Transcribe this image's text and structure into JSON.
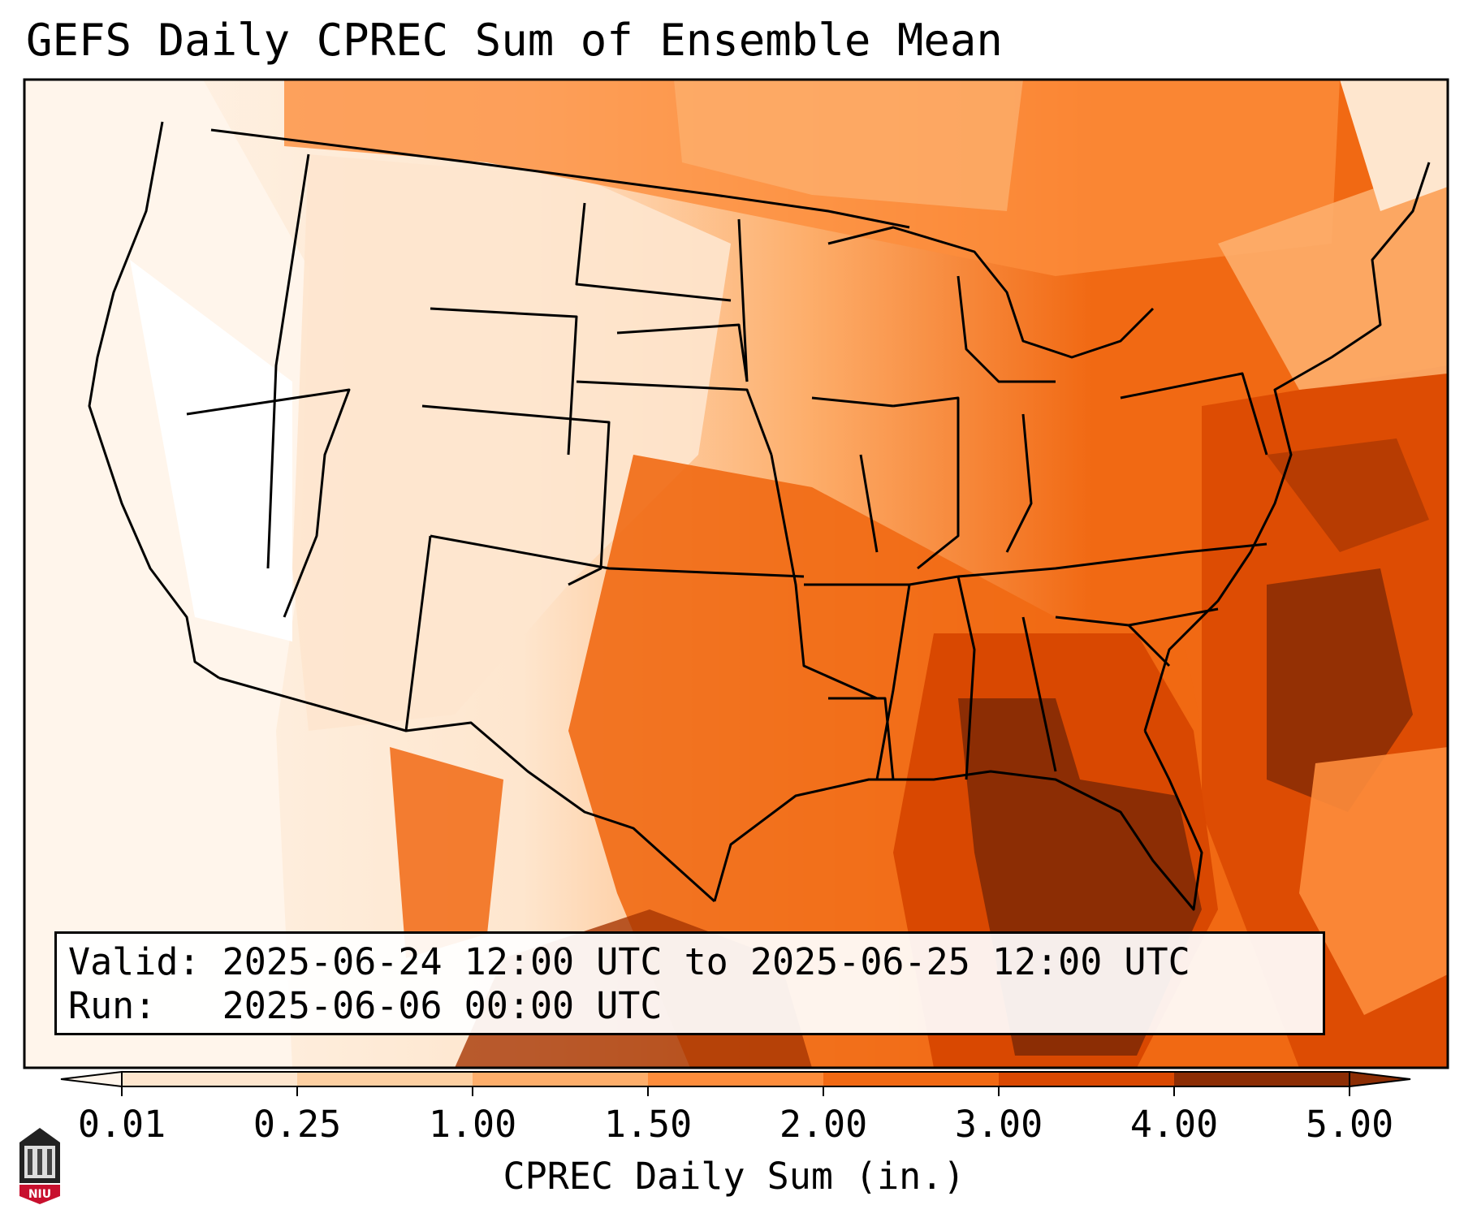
{
  "title": "GEFS Daily CPREC Sum of Ensemble Mean",
  "info": {
    "valid_line": "Valid: 2025-06-24 12:00 UTC to 2025-06-25 12:00 UTC",
    "run_line": "Run:   2025-06-06 00:00 UTC"
  },
  "colorbar": {
    "label": "CPREC Daily Sum (in.)",
    "ticks": [
      "0.01",
      "0.25",
      "1.00",
      "1.50",
      "2.00",
      "3.00",
      "4.00",
      "5.00"
    ],
    "colors": [
      "#fff5eb",
      "#fee6ce",
      "#fdd0a2",
      "#fdae6b",
      "#fd8d3c",
      "#f16913",
      "#d94801",
      "#8c2d04"
    ],
    "extend": "both"
  },
  "logo": {
    "text": "NIU",
    "color": "#c8102e",
    "name": "niu-seal-icon"
  }
}
